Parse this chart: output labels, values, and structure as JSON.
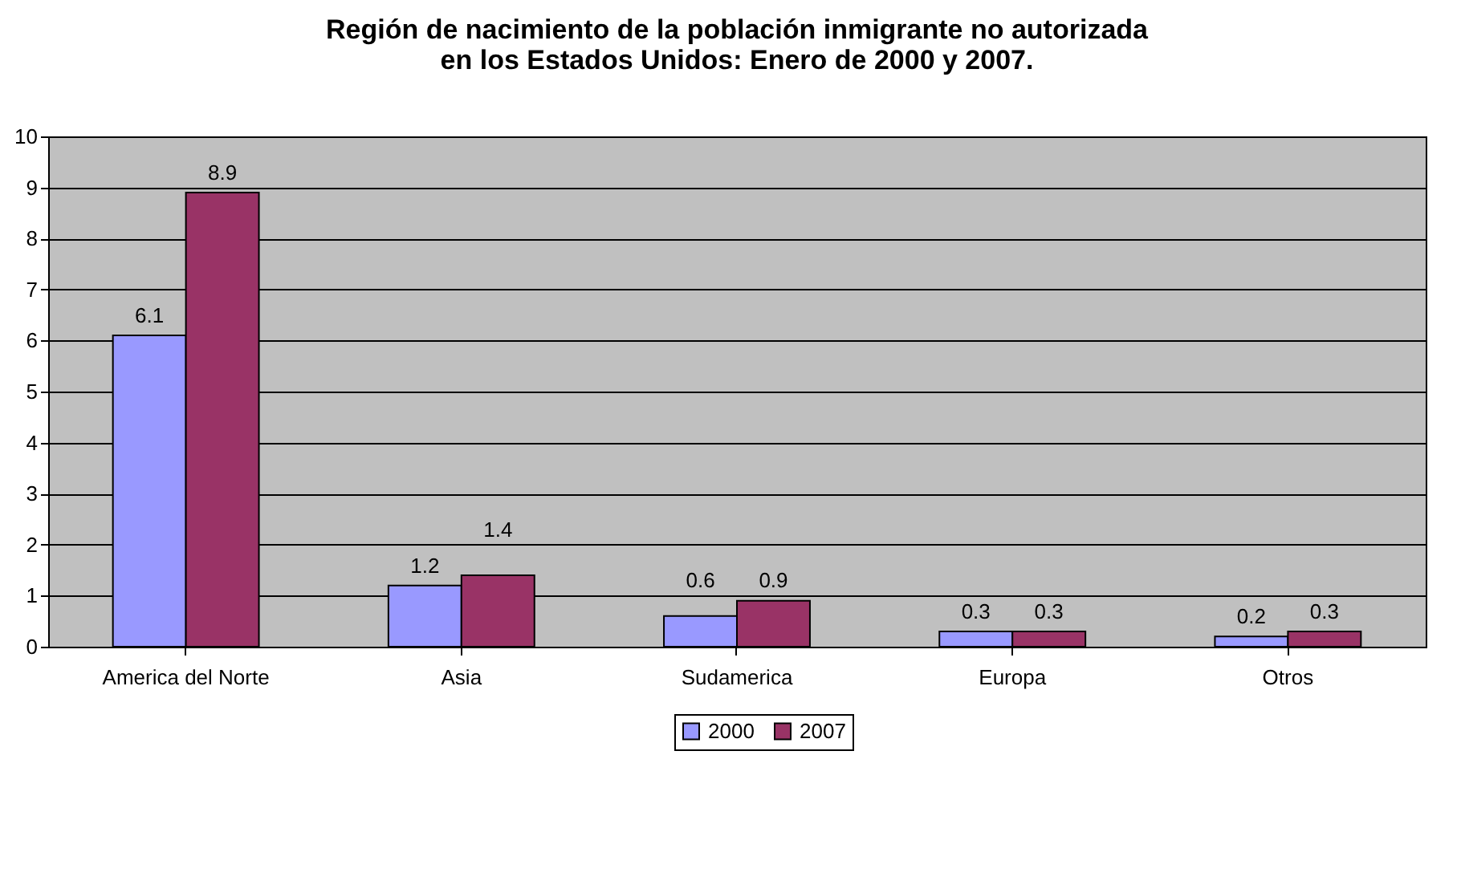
{
  "chart_data": {
    "type": "bar",
    "title": "Región de nacimiento de la población inmigrante no autorizada\nen los Estados Unidos: Enero de 2000 y 2007.",
    "categories": [
      "America del Norte",
      "Asia",
      "Sudamerica",
      "Europa",
      "Otros"
    ],
    "series": [
      {
        "name": "2000",
        "color": "#9999ff",
        "values": [
          6.1,
          1.2,
          0.6,
          0.3,
          0.2
        ]
      },
      {
        "name": "2007",
        "color": "#993366",
        "values": [
          8.9,
          1.4,
          0.9,
          0.3,
          0.3
        ]
      }
    ],
    "ylim": [
      0,
      10
    ],
    "yticks": [
      0,
      1,
      2,
      3,
      4,
      5,
      6,
      7,
      8,
      9,
      10
    ],
    "grid": "y",
    "legend": "bottom",
    "data_labels": true
  }
}
